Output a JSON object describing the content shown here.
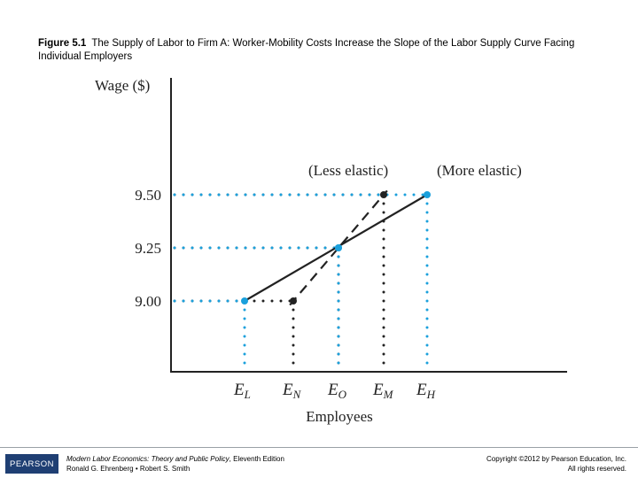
{
  "caption": {
    "figure_number": "Figure 5.1",
    "title": "The Supply of Labor to Firm A: Worker-Mobility Costs Increase the Slope of the Labor Supply Curve Facing Individual Employers"
  },
  "chart_data": {
    "type": "line",
    "ylabel": "Wage ($)",
    "xlabel": "Employees",
    "y_ticks": [
      "9.50",
      "9.25",
      "9.00"
    ],
    "x_ticks": [
      {
        "main": "E",
        "sub": "L"
      },
      {
        "main": "E",
        "sub": "N"
      },
      {
        "main": "E",
        "sub": "O"
      },
      {
        "main": "E",
        "sub": "M"
      },
      {
        "main": "E",
        "sub": "H"
      }
    ],
    "series": [
      {
        "name": "(Less elastic)",
        "style": "dashed",
        "points": [
          [
            "EN",
            9.0
          ],
          [
            "EO",
            9.25
          ],
          [
            "EM",
            9.5
          ]
        ]
      },
      {
        "name": "(More elastic)",
        "style": "solid",
        "points": [
          [
            "EL",
            9.0
          ],
          [
            "EO",
            9.25
          ],
          [
            "EH",
            9.5
          ]
        ]
      }
    ],
    "colors": {
      "axis": "#222222",
      "curve": "#222222",
      "highlight": "#1aa0dc",
      "point": "#222222"
    }
  },
  "footer": {
    "logo": "PEARSON",
    "book_title": "Modern Labor Economics: Theory and Public Policy",
    "edition": ", Eleventh Edition",
    "authors": "Ronald G. Ehrenberg • Robert S. Smith",
    "copyright": "Copyright ©2012 by Pearson Education, Inc.",
    "rights": "All rights reserved."
  }
}
